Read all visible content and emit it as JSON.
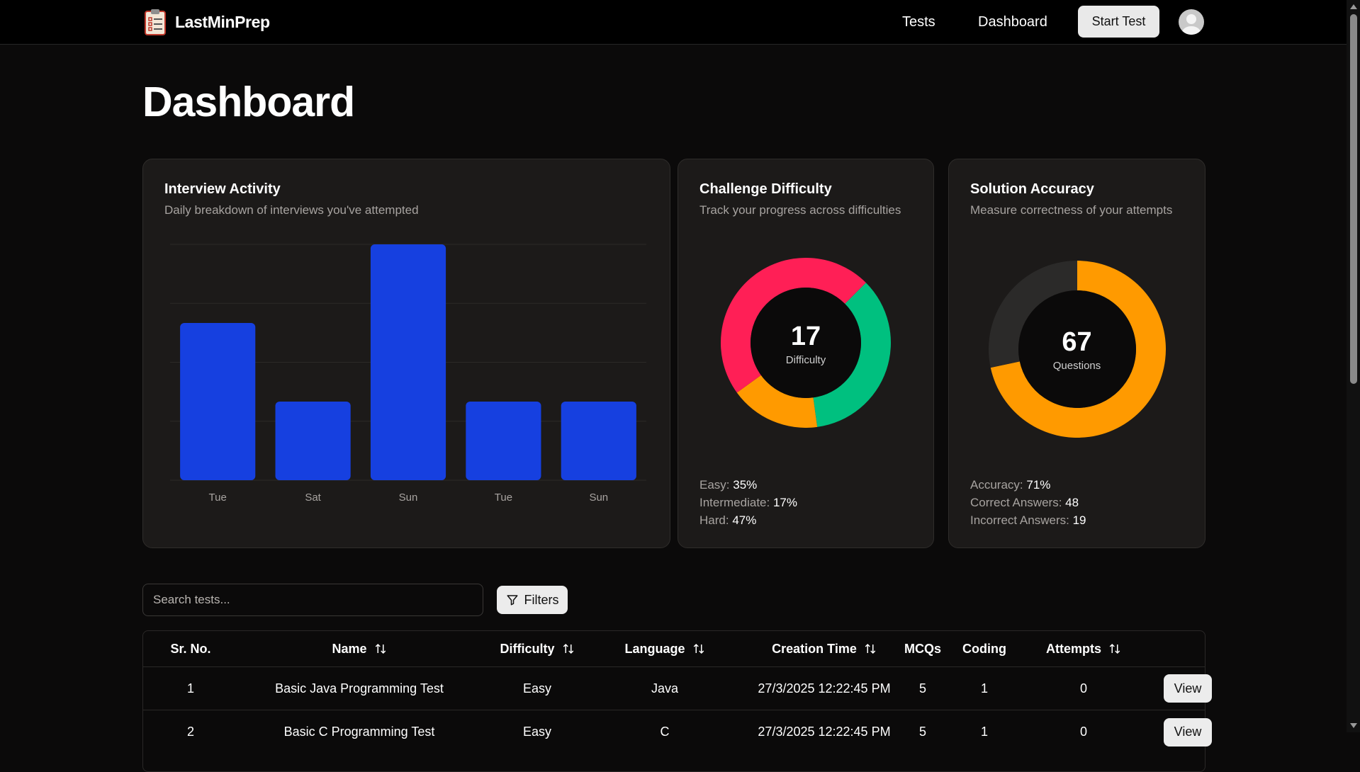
{
  "nav": {
    "brand": "LastMinPrep",
    "links": [
      "Tests",
      "Dashboard"
    ],
    "start_button": "Start Test"
  },
  "page_title": "Dashboard",
  "cards": {
    "activity": {
      "title": "Interview Activity",
      "subtitle": "Daily breakdown of interviews you've attempted"
    },
    "difficulty": {
      "title": "Challenge Difficulty",
      "subtitle": "Track your progress across difficulties",
      "center_value": "17",
      "center_label": "Difficulty",
      "stats": [
        {
          "label": "Easy:",
          "value": "35%"
        },
        {
          "label": "Intermediate:",
          "value": "17%"
        },
        {
          "label": "Hard:",
          "value": "47%"
        }
      ]
    },
    "accuracy": {
      "title": "Solution Accuracy",
      "subtitle": "Measure correctness of your attempts",
      "center_value": "67",
      "center_label": "Questions",
      "stats": [
        {
          "label": "Accuracy:",
          "value": "71%"
        },
        {
          "label": "Correct Answers:",
          "value": "48"
        },
        {
          "label": "Incorrect Answers:",
          "value": "19"
        }
      ]
    }
  },
  "chart_data": [
    {
      "type": "bar",
      "categories": [
        "Tue",
        "Sat",
        "Sun",
        "Tue",
        "Sun"
      ],
      "values": [
        2,
        1,
        3,
        1,
        1
      ],
      "ylim": [
        0,
        3
      ],
      "grid": true,
      "color": "#1640e0"
    },
    {
      "type": "pie",
      "labels": [
        "Easy",
        "Intermediate",
        "Hard"
      ],
      "values": [
        35,
        17,
        47
      ],
      "colors": [
        "#00c07f",
        "#ff9a00",
        "#ff1f56"
      ]
    },
    {
      "type": "pie",
      "labels": [
        "Correct Answers",
        "Incorrect Answers"
      ],
      "values": [
        48,
        19
      ],
      "colors": [
        "#ff9a00",
        "#2b2a29"
      ]
    }
  ],
  "search": {
    "placeholder": "Search tests..."
  },
  "filters_label": "Filters",
  "table": {
    "headers": {
      "sr": "Sr. No.",
      "name": "Name",
      "difficulty": "Difficulty",
      "language": "Language",
      "time": "Creation Time",
      "mcqs": "MCQs",
      "coding": "Coding",
      "attempts": "Attempts"
    },
    "rows": [
      {
        "sr": "1",
        "name": "Basic Java Programming Test",
        "difficulty": "Easy",
        "language": "Java",
        "time": "27/3/2025 12:22:45 PM",
        "mcqs": "5",
        "coding": "1",
        "attempts": "0",
        "action": "View"
      },
      {
        "sr": "2",
        "name": "Basic C Programming Test",
        "difficulty": "Easy",
        "language": "C",
        "time": "27/3/2025 12:22:45 PM",
        "mcqs": "5",
        "coding": "1",
        "attempts": "0",
        "action": "View"
      }
    ]
  },
  "icons": {
    "brand": "clipboard-checklist-icon",
    "avatar": "user-avatar-icon",
    "filter": "funnel-icon",
    "sort": "sort-arrows-icon"
  }
}
